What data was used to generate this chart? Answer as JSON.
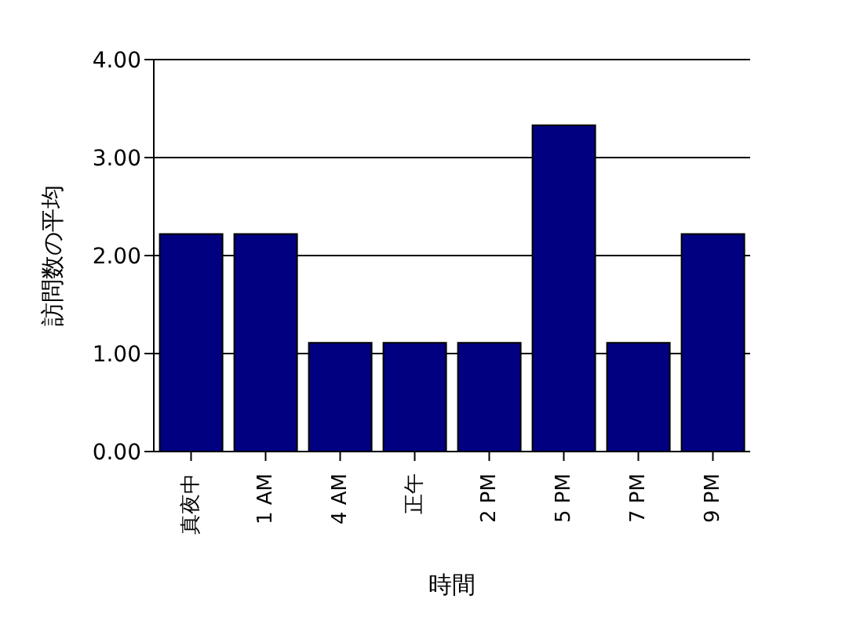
{
  "chart_data": {
    "type": "bar",
    "xlabel": "時間",
    "ylabel": "訪問数の平均",
    "categories": [
      "真夜中",
      "1 AM",
      "4 AM",
      "正午",
      "2 PM",
      "5 PM",
      "7 PM",
      "9 PM"
    ],
    "values": [
      2.22,
      2.22,
      1.11,
      1.11,
      1.11,
      3.33,
      1.11,
      2.22
    ],
    "color": "#000080",
    "ylim": [
      0,
      4
    ],
    "yticks": [
      {
        "value": 0,
        "label": "0.00"
      },
      {
        "value": 1,
        "label": "1.00"
      },
      {
        "value": 2,
        "label": "2.00"
      },
      {
        "value": 3,
        "label": "3.00"
      },
      {
        "value": 4,
        "label": "4.00"
      }
    ],
    "grid": "y",
    "legend": false
  }
}
